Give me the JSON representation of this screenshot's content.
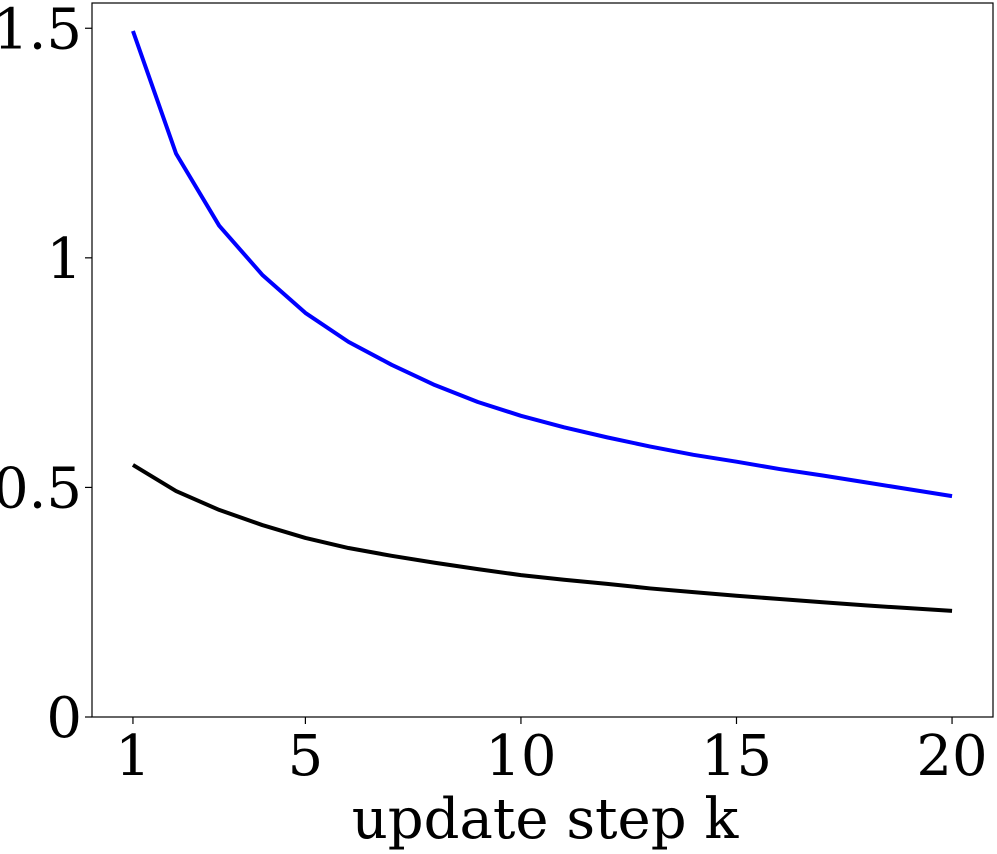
{
  "chart_data": {
    "type": "line",
    "x_label": "update step k",
    "x": [
      1,
      2,
      3,
      4,
      5,
      6,
      7,
      8,
      9,
      10,
      11,
      12,
      13,
      14,
      15,
      16,
      17,
      18,
      19,
      20
    ],
    "series": [
      {
        "color": "#0000ff",
        "values": [
          1.494,
          1.227,
          1.07,
          0.963,
          0.88,
          0.817,
          0.767,
          0.723,
          0.686,
          0.656,
          0.631,
          0.609,
          0.589,
          0.571,
          0.556,
          0.54,
          0.526,
          0.511,
          0.496,
          0.481
        ]
      },
      {
        "color": "#000000",
        "values": [
          0.549,
          0.492,
          0.451,
          0.418,
          0.39,
          0.368,
          0.351,
          0.336,
          0.322,
          0.309,
          0.299,
          0.29,
          0.28,
          0.272,
          0.264,
          0.257,
          0.25,
          0.243,
          0.237,
          0.231
        ]
      }
    ],
    "xlim": [
      0.05,
      20.95
    ],
    "xticks": [
      1,
      5,
      10,
      15,
      20
    ],
    "ylim": [
      0,
      1.555
    ],
    "yticks": [
      0,
      0.5,
      1,
      1.5
    ]
  }
}
